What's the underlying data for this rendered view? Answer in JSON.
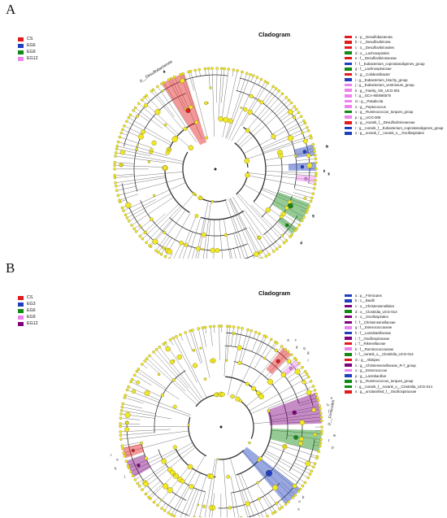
{
  "panels": [
    {
      "id": "A",
      "letter": "A",
      "title": "Cladogram",
      "groups": [
        {
          "name": "CS",
          "color": "#e31a1c"
        },
        {
          "name": "EG6",
          "color": "#1f3fbf"
        },
        {
          "name": "EG9",
          "color": "#138a13"
        },
        {
          "name": "EG12",
          "color": "#ee82ee"
        }
      ],
      "legend": [
        {
          "text": "a : p__Desulfobacterota",
          "color": "#e31a1c"
        },
        {
          "text": "b : c__Desulfovibrionia",
          "color": "#e31a1c"
        },
        {
          "text": "c : o__Desulfovibrionales",
          "color": "#e31a1c"
        },
        {
          "text": "d : o__Lachnospirales",
          "color": "#138a13"
        },
        {
          "text": "e : f__Desulfovibrionaceae",
          "color": "#e31a1c"
        },
        {
          "text": "f : f__Eubacterium_coprostanoligenes_group",
          "color": "#1f3fbf"
        },
        {
          "text": "g : f__Lachnospiraceae",
          "color": "#138a13"
        },
        {
          "text": "h : g__Colidextribacter",
          "color": "#e31a1c"
        },
        {
          "text": "i : g__Eubacterium_brachy_group",
          "color": "#1f3fbf"
        },
        {
          "text": "j : g__Eubacterium_ventriosum_group",
          "color": "#ee82ee"
        },
        {
          "text": "k : g__Family_XIII_UCG-001",
          "color": "#ee82ee"
        },
        {
          "text": "l : g__GCA-900066575",
          "color": "#ee82ee"
        },
        {
          "text": "m : g__Paludicola",
          "color": "#ee82ee"
        },
        {
          "text": "n : g__Peptococcus",
          "color": "#ee82ee"
        },
        {
          "text": "o : g__Ruminococcus_torques_group",
          "color": "#138a13"
        },
        {
          "text": "p : g__UCG-009",
          "color": "#ee82ee"
        },
        {
          "text": "q : g__norank_f__Desulfovibrionaceae",
          "color": "#e31a1c"
        },
        {
          "text": "r : g__norank_f__Eubacterium_coprostanoligenes_group",
          "color": "#1f3fbf"
        },
        {
          "text": "s : g__norank_f__norank_o__Oscillospirales",
          "color": "#1f3fbf"
        }
      ],
      "outer_label": "p__Desulfobacterota",
      "wedge_letters": [
        "a",
        "b",
        "c",
        "h",
        "q",
        "e",
        "k",
        "l",
        "i",
        "f",
        "s",
        "j",
        "n",
        "m",
        "p",
        "r",
        "g",
        "d",
        "o"
      ]
    },
    {
      "id": "B",
      "letter": "B",
      "title": "Cladogram",
      "groups": [
        {
          "name": "CS",
          "color": "#e31a1c"
        },
        {
          "name": "EG3",
          "color": "#1f3fbf"
        },
        {
          "name": "EG6",
          "color": "#138a13"
        },
        {
          "name": "EG9",
          "color": "#ee82ee"
        },
        {
          "name": "EG12",
          "color": "#800080"
        }
      ],
      "legend": [
        {
          "text": "a : p__Firmicutes",
          "color": "#1f3fbf"
        },
        {
          "text": "b : c__Bacilli",
          "color": "#1f3fbf"
        },
        {
          "text": "c : o__Christensenellales",
          "color": "#800080"
        },
        {
          "text": "d : o__Clostridia_UCG-014",
          "color": "#138a13"
        },
        {
          "text": "e : o__Oscillospirales",
          "color": "#800080"
        },
        {
          "text": "f : f__Christensenellaceae",
          "color": "#800080"
        },
        {
          "text": "g : f__Enterococcaceae",
          "color": "#ee82ee"
        },
        {
          "text": "h : f__Lactobacillaceae",
          "color": "#1f3fbf"
        },
        {
          "text": "i : f__Oscillospiraceae",
          "color": "#800080"
        },
        {
          "text": "j : f__Rikenellaceae",
          "color": "#e31a1c"
        },
        {
          "text": "k : f__Ruminococcaceae",
          "color": "#ee82ee"
        },
        {
          "text": "l : f__norank_o__Clostridia_UCG-014",
          "color": "#138a13"
        },
        {
          "text": "m : g__Alistipes",
          "color": "#e31a1c"
        },
        {
          "text": "n : g__Christensenellaceae_R-7_group",
          "color": "#800080"
        },
        {
          "text": "o : g__Enterococcus",
          "color": "#ee82ee"
        },
        {
          "text": "p : g__Lactobacillus",
          "color": "#1f3fbf"
        },
        {
          "text": "q : g__Ruminococcus_torques_group",
          "color": "#138a13"
        },
        {
          "text": "r : g__norank_f__norank_o__Clostridia_UCG-014",
          "color": "#138a13"
        },
        {
          "text": "s : g__unclassified_f__Oscillospiraceae",
          "color": "#e31a1c"
        }
      ],
      "outer_label": "p__Firmicutes",
      "wedge_letters": [
        "a",
        "g",
        "j",
        "m",
        "o",
        "k",
        "e",
        "c",
        "i",
        "n",
        "f",
        "s",
        "l",
        "r",
        "d",
        "q",
        "h",
        "p",
        "b"
      ]
    }
  ]
}
